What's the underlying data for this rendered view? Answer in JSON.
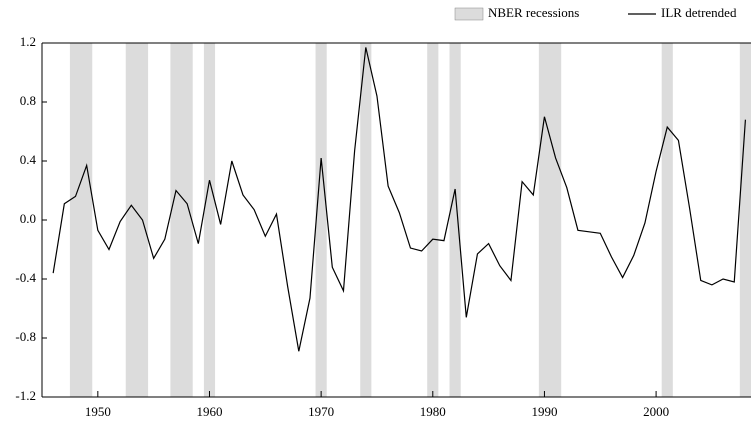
{
  "chart_data": {
    "type": "line",
    "x": [
      1946,
      1947,
      1948,
      1949,
      1950,
      1951,
      1952,
      1953,
      1954,
      1955,
      1956,
      1957,
      1958,
      1959,
      1960,
      1961,
      1962,
      1963,
      1964,
      1965,
      1966,
      1967,
      1968,
      1969,
      1970,
      1971,
      1972,
      1973,
      1974,
      1975,
      1976,
      1977,
      1978,
      1979,
      1980,
      1981,
      1982,
      1983,
      1984,
      1985,
      1986,
      1987,
      1988,
      1989,
      1990,
      1991,
      1992,
      1993,
      1994,
      1995,
      1996,
      1997,
      1998,
      1999,
      2000,
      2001,
      2002,
      2003,
      2004,
      2005,
      2006,
      2007,
      2008
    ],
    "series": [
      {
        "name": "ILR detrended",
        "color": "#000000",
        "values": [
          -0.36,
          0.11,
          0.16,
          0.37,
          -0.07,
          -0.2,
          -0.01,
          0.1,
          0.0,
          -0.26,
          -0.13,
          0.2,
          0.11,
          -0.16,
          0.27,
          -0.03,
          0.4,
          0.17,
          0.07,
          -0.11,
          0.04,
          -0.45,
          -0.89,
          -0.53,
          0.42,
          -0.32,
          -0.48,
          0.47,
          1.17,
          0.84,
          0.23,
          0.05,
          -0.19,
          -0.21,
          -0.13,
          -0.14,
          0.21,
          -0.66,
          -0.23,
          -0.16,
          -0.31,
          -0.41,
          0.26,
          0.17,
          0.7,
          0.42,
          0.22,
          -0.07,
          -0.08,
          -0.09,
          -0.25,
          -0.39,
          -0.24,
          -0.02,
          0.33,
          0.63,
          0.54,
          0.08,
          -0.41,
          -0.44,
          -0.4,
          -0.42,
          0.68
        ]
      }
    ],
    "recessions": {
      "name": "NBER recessions",
      "color": "#dcdcdc",
      "ranges": [
        [
          1947.5,
          1949.5
        ],
        [
          1952.5,
          1954.5
        ],
        [
          1956.5,
          1958.5
        ],
        [
          1959.5,
          1960.5
        ],
        [
          1969.5,
          1970.5
        ],
        [
          1973.5,
          1974.5
        ],
        [
          1979.5,
          1980.5
        ],
        [
          1981.5,
          1982.5
        ],
        [
          1989.5,
          1991.5
        ],
        [
          2000.5,
          2001.5
        ],
        [
          2007.5,
          2008.5
        ]
      ]
    },
    "xlim": [
      1945,
      2008.5
    ],
    "xticks": [
      1950,
      1960,
      1970,
      1980,
      1990,
      2000
    ],
    "ylim": [
      -1.2,
      1.2
    ],
    "yticks": [
      1.2,
      0.8,
      0.4,
      {
        "value": 0,
        "label": "0.0"
      },
      -0.4,
      -0.8,
      -1.2
    ],
    "legend": "top-right"
  }
}
